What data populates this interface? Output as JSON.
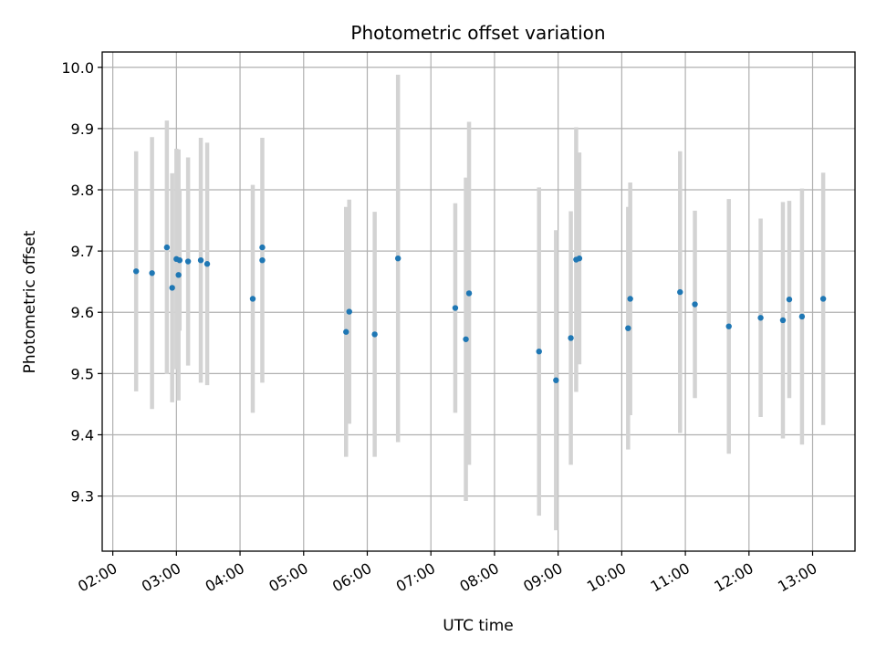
{
  "chart_data": {
    "type": "scatter",
    "title": "Photometric offset variation",
    "xlabel": "UTC time",
    "ylabel": "Photometric offset",
    "xlim": [
      "01:50",
      "13:40"
    ],
    "ylim": [
      9.21,
      10.025
    ],
    "x_ticks": [
      "02:00",
      "03:00",
      "04:00",
      "05:00",
      "06:00",
      "07:00",
      "08:00",
      "09:00",
      "10:00",
      "11:00",
      "12:00",
      "13:00"
    ],
    "y_ticks": [
      9.3,
      9.4,
      9.5,
      9.6,
      9.7,
      9.8,
      9.9,
      10.0
    ],
    "y_tick_labels": [
      "9.3",
      "9.4",
      "9.5",
      "9.6",
      "9.7",
      "9.8",
      "9.9",
      "10.0"
    ],
    "grid": true,
    "marker_color": "#1f77b4",
    "errorbar_color": "#d3d3d3",
    "series": [
      {
        "points": [
          {
            "x": "02:22",
            "y": 9.667,
            "err": 0.196
          },
          {
            "x": "02:37",
            "y": 9.664,
            "err": 0.222
          },
          {
            "x": "02:51",
            "y": 9.706,
            "err": 0.207
          },
          {
            "x": "02:56",
            "y": 9.64,
            "err": 0.187
          },
          {
            "x": "03:00",
            "y": 9.687,
            "err": 0.18
          },
          {
            "x": "03:02",
            "y": 9.661,
            "err": 0.205
          },
          {
            "x": "03:03",
            "y": 9.685,
            "err": 0.115
          },
          {
            "x": "03:11",
            "y": 9.683,
            "err": 0.17
          },
          {
            "x": "03:23",
            "y": 9.685,
            "err": 0.2
          },
          {
            "x": "03:29",
            "y": 9.679,
            "err": 0.198
          },
          {
            "x": "04:12",
            "y": 9.622,
            "err": 0.186
          },
          {
            "x": "04:21",
            "y": 9.706,
            "err": 0.0
          },
          {
            "x": "04:21",
            "y": 9.685,
            "err": 0.2
          },
          {
            "x": "05:40",
            "y": 9.568,
            "err": 0.204
          },
          {
            "x": "05:43",
            "y": 9.601,
            "err": 0.183
          },
          {
            "x": "06:07",
            "y": 9.564,
            "err": 0.2
          },
          {
            "x": "06:29",
            "y": 9.688,
            "err": 0.3
          },
          {
            "x": "07:23",
            "y": 9.607,
            "err": 0.171
          },
          {
            "x": "07:33",
            "y": 9.556,
            "err": 0.264
          },
          {
            "x": "07:36",
            "y": 9.631,
            "err": 0.28
          },
          {
            "x": "08:42",
            "y": 9.536,
            "err": 0.268
          },
          {
            "x": "08:58",
            "y": 9.489,
            "err": 0.245
          },
          {
            "x": "09:12",
            "y": 9.558,
            "err": 0.207
          },
          {
            "x": "09:17",
            "y": 9.686,
            "err": 0.216
          },
          {
            "x": "09:20",
            "y": 9.688,
            "err": 0.173
          },
          {
            "x": "10:06",
            "y": 9.574,
            "err": 0.198
          },
          {
            "x": "10:08",
            "y": 9.622,
            "err": 0.19
          },
          {
            "x": "10:55",
            "y": 9.633,
            "err": 0.23
          },
          {
            "x": "11:09",
            "y": 9.613,
            "err": 0.153
          },
          {
            "x": "11:41",
            "y": 9.577,
            "err": 0.208
          },
          {
            "x": "12:11",
            "y": 9.591,
            "err": 0.162
          },
          {
            "x": "12:32",
            "y": 9.587,
            "err": 0.193
          },
          {
            "x": "12:38",
            "y": 9.621,
            "err": 0.161
          },
          {
            "x": "12:50",
            "y": 9.593,
            "err": 0.209
          },
          {
            "x": "13:10",
            "y": 9.622,
            "err": 0.206
          }
        ]
      }
    ]
  }
}
